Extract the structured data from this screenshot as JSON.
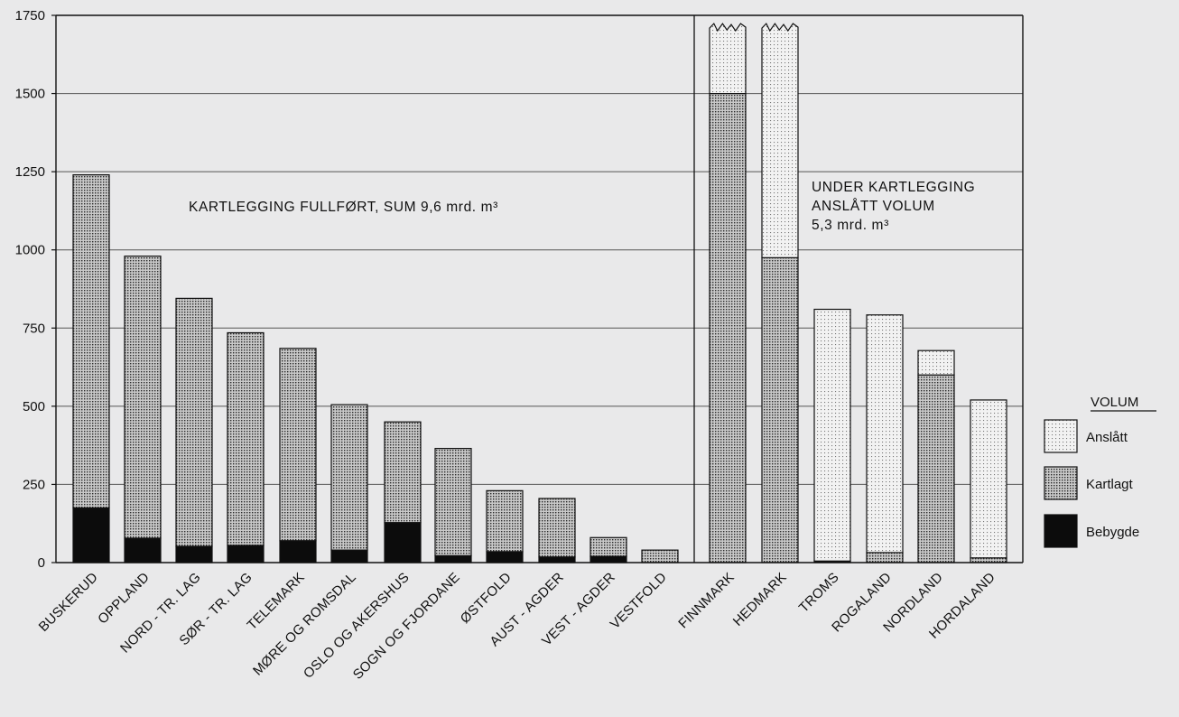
{
  "chart_data": {
    "type": "bar",
    "stacked": true,
    "ylim": [
      0,
      1750
    ],
    "yticks": [
      0,
      250,
      500,
      750,
      1000,
      1250,
      1500,
      1750
    ],
    "grid": true,
    "groups": [
      {
        "annotation": [
          "KARTLEGGING FULLFØRT, SUM 9,6 mrd. m³"
        ],
        "categories": [
          "BUSKERUD",
          "OPPLAND",
          "NORD - TR. LAG",
          "SØR - TR. LAG",
          "TELEMARK",
          "MØRE OG ROMSDAL",
          "OSLO OG AKERSHUS",
          "SOGN OG FJORDANE",
          "ØSTFOLD",
          "AUST - AGDER",
          "VEST - AGDER",
          "VESTFOLD"
        ]
      },
      {
        "annotation": [
          "UNDER KARTLEGGING",
          "ANSLÅTT VOLUM",
          "5,3 mrd. m³"
        ],
        "categories": [
          "FINNMARK",
          "HEDMARK",
          "TROMS",
          "ROGALAND",
          "NORDLAND",
          "HORDALAND"
        ]
      }
    ],
    "categories": [
      "BUSKERUD",
      "OPPLAND",
      "NORD - TR. LAG",
      "SØR - TR. LAG",
      "TELEMARK",
      "MØRE OG ROMSDAL",
      "OSLO OG AKERSHUS",
      "SOGN OG FJORDANE",
      "ØSTFOLD",
      "AUST - AGDER",
      "VEST - AGDER",
      "VESTFOLD",
      "FINNMARK",
      "HEDMARK",
      "TROMS",
      "ROGALAND",
      "NORDLAND",
      "HORDALAND"
    ],
    "series": [
      {
        "name": "Bebygde",
        "values": [
          175,
          78,
          52,
          55,
          70,
          40,
          128,
          22,
          35,
          18,
          20,
          0,
          0,
          0,
          5,
          0,
          0,
          0
        ]
      },
      {
        "name": "Kartlagt",
        "values": [
          1065,
          902,
          793,
          680,
          615,
          465,
          322,
          343,
          195,
          187,
          60,
          40,
          1500,
          975,
          0,
          32,
          600,
          15
        ]
      },
      {
        "name": "Anslått",
        "values": [
          0,
          0,
          0,
          0,
          0,
          0,
          0,
          0,
          0,
          0,
          0,
          0,
          215,
          740,
          805,
          760,
          78,
          505
        ]
      }
    ],
    "truncated": [
      "FINNMARK",
      "HEDMARK"
    ],
    "legend": {
      "title": "VOLUM",
      "position": "right",
      "items": [
        "Anslått",
        "Kartlagt",
        "Bebygde"
      ]
    }
  }
}
